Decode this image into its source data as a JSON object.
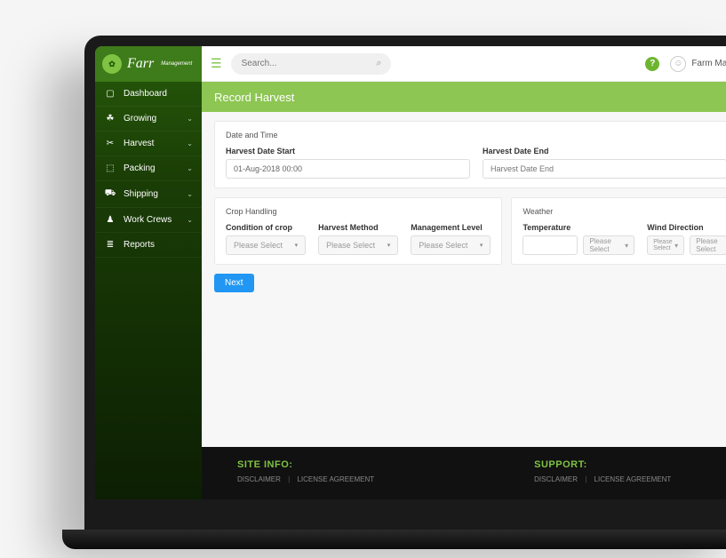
{
  "brand": {
    "name": "Farr",
    "sub": "Management"
  },
  "sidebar": {
    "items": [
      {
        "label": "Dashboard",
        "icon": "dashboard",
        "expandable": false
      },
      {
        "label": "Growing",
        "icon": "plant",
        "expandable": true
      },
      {
        "label": "Harvest",
        "icon": "harvest",
        "expandable": true
      },
      {
        "label": "Packing",
        "icon": "box",
        "expandable": true
      },
      {
        "label": "Shipping",
        "icon": "truck",
        "expandable": true
      },
      {
        "label": "Work Crews",
        "icon": "crew",
        "expandable": true
      },
      {
        "label": "Reports",
        "icon": "report",
        "expandable": false
      }
    ]
  },
  "topbar": {
    "search_placeholder": "Search...",
    "user_name": "Farm Manag"
  },
  "page": {
    "title": "Record Harvest"
  },
  "sections": {
    "datetime": {
      "title": "Date and Time",
      "start_label": "Harvest Date Start",
      "start_value": "01-Aug-2018 00:00",
      "end_label": "Harvest Date End",
      "end_placeholder": "Harvest Date End"
    },
    "crop": {
      "title": "Crop Handling",
      "condition_label": "Condition of crop",
      "method_label": "Harvest Method",
      "mgmt_label": "Management Level",
      "select_placeholder": "Please Select"
    },
    "weather": {
      "title": "Weather",
      "temp_label": "Temperature",
      "wind_label": "Wind Direction",
      "select_placeholder": "Please Select",
      "unit_placeholder": "Please Select"
    }
  },
  "buttons": {
    "next": "Next"
  },
  "footer": {
    "site_info_title": "SITE INFO:",
    "support_title": "SUPPORT:",
    "link_disclaimer": "DISCLAIMER",
    "link_license": "LICENSE AGREEMENT"
  },
  "colors": {
    "brand_green": "#3e7b1a",
    "accent_green": "#8dc653",
    "next_blue": "#2196f3",
    "sidebar_dark": "#0c1f03"
  }
}
